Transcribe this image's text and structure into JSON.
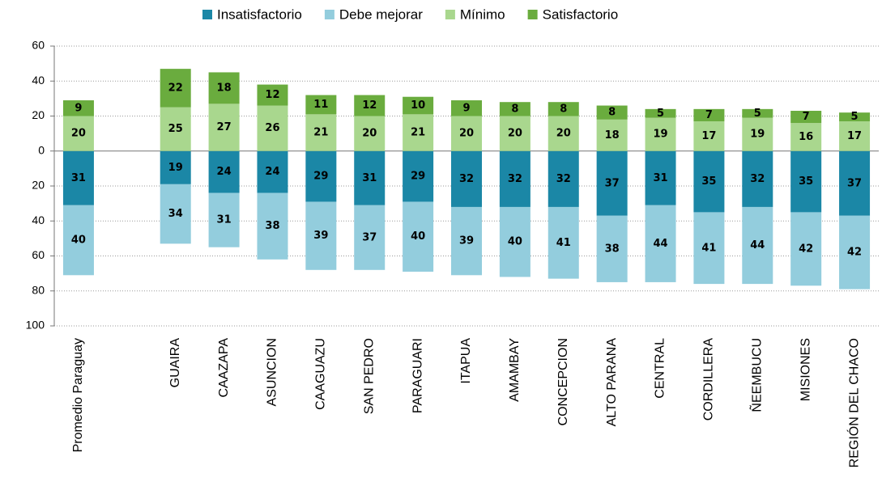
{
  "chart_data": {
    "type": "stacked_bar_diverging",
    "categories": [
      "Promedio Paraguay",
      null,
      "GUAIRA",
      "CAAZAPA",
      "ASUNCION",
      "CAAGUAZU",
      "SAN PEDRO",
      "PARAGUARI",
      "ITAPUA",
      "AMAMBAY",
      "CONCEPCION",
      "ALTO PARANA",
      "CENTRAL",
      "CORDILLERA",
      "ÑEEMBUCU",
      "MISIONES",
      "REGIÓN DEL CHACO"
    ],
    "series": [
      {
        "name": "Insatisfactorio",
        "color": "#1b87a6",
        "values": [
          -31,
          null,
          -19,
          -24,
          -24,
          -29,
          -31,
          -29,
          -32,
          -32,
          -32,
          -37,
          -31,
          -35,
          -32,
          -35,
          -37
        ],
        "value_labels": [
          "31",
          null,
          "19",
          "24",
          "24",
          "29",
          "31",
          "29",
          "32",
          "32",
          "32",
          "37",
          "31",
          "35",
          "32",
          "35",
          "37"
        ]
      },
      {
        "name": "Debe mejorar",
        "color": "#93cddd",
        "values": [
          -40,
          null,
          -34,
          -31,
          -38,
          -39,
          -37,
          -40,
          -39,
          -40,
          -41,
          -38,
          -44,
          -41,
          -44,
          -42,
          -42
        ],
        "value_labels": [
          "40",
          null,
          "34",
          "31",
          "38",
          "39",
          "37",
          "40",
          "39",
          "40",
          "41",
          "38",
          "44",
          "41",
          "44",
          "42",
          "42"
        ]
      },
      {
        "name": "Mínimo",
        "color": "#a9d78e",
        "values": [
          20,
          null,
          25,
          27,
          26,
          21,
          20,
          21,
          20,
          20,
          20,
          18,
          19,
          17,
          19,
          16,
          17
        ]
      },
      {
        "name": "Satisfactorio",
        "color": "#6aac3e",
        "values": [
          9,
          null,
          22,
          18,
          12,
          11,
          12,
          10,
          9,
          8,
          8,
          8,
          5,
          7,
          5,
          7,
          5
        ]
      }
    ],
    "ylim": [
      -100,
      60
    ],
    "yticks": [
      {
        "value": -100,
        "label": "100"
      },
      {
        "value": -80,
        "label": "80"
      },
      {
        "value": -60,
        "label": "60"
      },
      {
        "value": -40,
        "label": "40"
      },
      {
        "value": -20,
        "label": "20"
      },
      0,
      20,
      40,
      60
    ],
    "grid": true,
    "legend": "top"
  }
}
